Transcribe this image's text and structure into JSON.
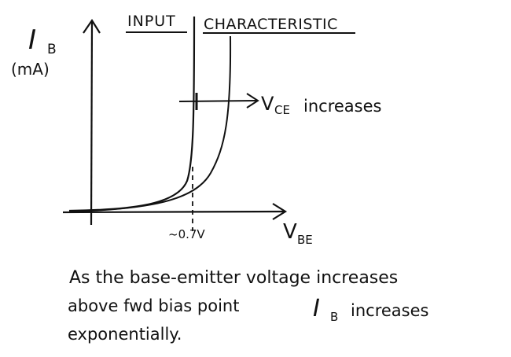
{
  "title": {
    "part1": "INPUT",
    "part2": "CHARACTERISTIC"
  },
  "y_axis": {
    "symbol": "I",
    "subscript": "B",
    "unit": "(mA)"
  },
  "x_axis": {
    "symbol": "V",
    "subscript": "BE"
  },
  "annotation": {
    "arrow_label_symbol": "V",
    "arrow_label_subscript": "CE",
    "arrow_label_rest": "increases"
  },
  "threshold_label": "~0.7V",
  "caption": {
    "line1": "As the base-emitter voltage increases",
    "line2_a": "above fwd bias point",
    "line2_symbol": "I",
    "line2_subscript": "B",
    "line2_b": "increases",
    "line3": "exponentially."
  },
  "colors": {
    "ink": "#111111",
    "background": "#ffffff"
  }
}
